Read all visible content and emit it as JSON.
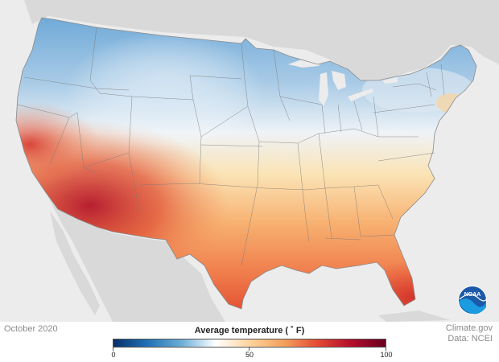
{
  "date_label": "October 2020",
  "credit": {
    "line1": "Climate.gov",
    "line2": "Data: NCEI"
  },
  "legend": {
    "title": "Average temperature ( ˚ F)",
    "min_label": "0",
    "mid_label": "50",
    "max_label": "100",
    "min": 0,
    "mid": 50,
    "max": 100,
    "colors": [
      "#08306b",
      "#2171b5",
      "#6baed6",
      "#ffffff",
      "#fdd49e",
      "#f4a15d",
      "#e34a33",
      "#b30c2c",
      "#67001f"
    ]
  },
  "logo": {
    "text": "NOAA",
    "icon": "noaa-logo-icon"
  },
  "map_colors": {
    "ocean": "#ececec",
    "land_outside": "#d6d6d6",
    "state_border": "#7a7a7a"
  }
}
